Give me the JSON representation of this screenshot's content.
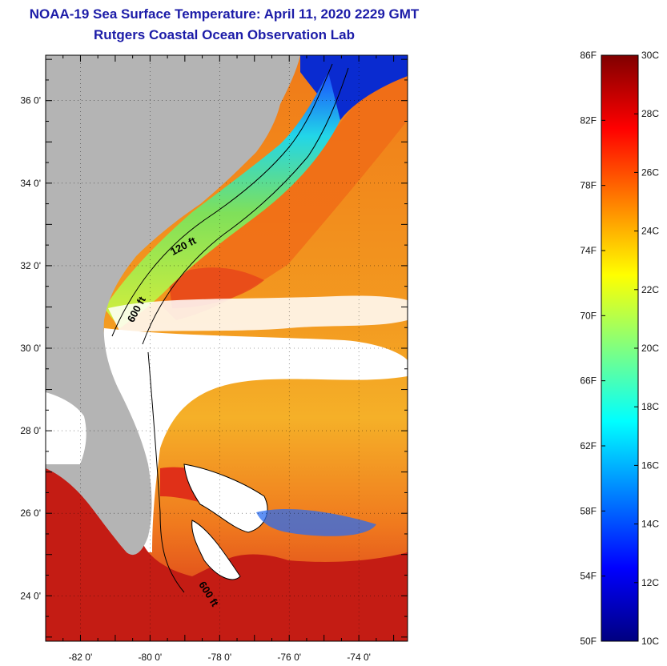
{
  "header": {
    "title": "NOAA-19 Sea Surface Temperature:  April 11, 2020 2229 GMT",
    "subtitle": "Rutgers Coastal Ocean Observation Lab"
  },
  "map": {
    "lon_range": [
      -83.0,
      -72.6
    ],
    "lat_range": [
      22.9,
      37.1
    ],
    "lon_ticks": [
      {
        "value": -82,
        "label": "-82 0'"
      },
      {
        "value": -80,
        "label": "-80 0'"
      },
      {
        "value": -78,
        "label": "-78 0'"
      },
      {
        "value": -76,
        "label": "-76 0'"
      },
      {
        "value": -74,
        "label": "-74 0'"
      }
    ],
    "lat_ticks": [
      {
        "value": 36,
        "label": "36 0'"
      },
      {
        "value": 34,
        "label": "34 0'"
      },
      {
        "value": 32,
        "label": "32 0'"
      },
      {
        "value": 30,
        "label": "30 0'"
      },
      {
        "value": 28,
        "label": "28 0'"
      },
      {
        "value": 26,
        "label": "26 0'"
      },
      {
        "value": 24,
        "label": "24 0'"
      }
    ],
    "contour_labels": [
      {
        "text": "120 ft",
        "lon": -79.0,
        "lat": 32.4
      },
      {
        "text": "600 ft",
        "lon": -80.3,
        "lat": 30.9
      },
      {
        "text": "600 ft",
        "lon": -78.4,
        "lat": 24.0
      }
    ],
    "colors": {
      "land": "#b4b4b4",
      "cloud": "#ffffff",
      "warm_gulf_stream": "#d42a1a",
      "offshore": "#f08a1c",
      "shelf": "#9fe04a"
    }
  },
  "colorbar": {
    "fahrenheit_ticks": [
      {
        "value": 86,
        "label": "86F"
      },
      {
        "value": 82,
        "label": "82F"
      },
      {
        "value": 78,
        "label": "78F"
      },
      {
        "value": 74,
        "label": "74F"
      },
      {
        "value": 70,
        "label": "70F"
      },
      {
        "value": 66,
        "label": "66F"
      },
      {
        "value": 62,
        "label": "62F"
      },
      {
        "value": 58,
        "label": "58F"
      },
      {
        "value": 54,
        "label": "54F"
      },
      {
        "value": 50,
        "label": "50F"
      }
    ],
    "celsius_ticks": [
      {
        "value": 30,
        "label": "30C"
      },
      {
        "value": 28,
        "label": "28C"
      },
      {
        "value": 26,
        "label": "26C"
      },
      {
        "value": 24,
        "label": "24C"
      },
      {
        "value": 22,
        "label": "22C"
      },
      {
        "value": 20,
        "label": "20C"
      },
      {
        "value": 18,
        "label": "18C"
      },
      {
        "value": 16,
        "label": "16C"
      },
      {
        "value": 14,
        "label": "14C"
      },
      {
        "value": 12,
        "label": "12C"
      },
      {
        "value": 10,
        "label": "10C"
      }
    ],
    "range_c": [
      10,
      30
    ],
    "gradient": [
      "#000080",
      "#0000ff",
      "#0080ff",
      "#00ffff",
      "#80ff80",
      "#ffff00",
      "#ff8000",
      "#ff0000",
      "#800000"
    ]
  }
}
